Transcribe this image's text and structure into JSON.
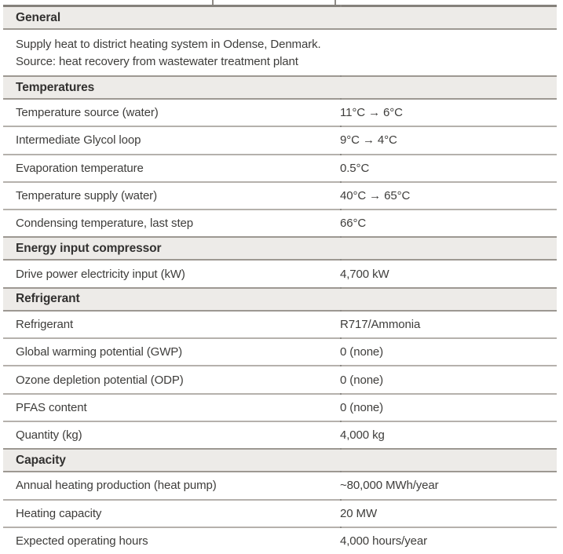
{
  "table": {
    "colors": {
      "header_bg": "#edebe8",
      "header_border": "#9d9892",
      "row_border": "#b5b1ac",
      "top_border": "#85817b",
      "text": "#3e3d3b",
      "header_text": "#323130"
    },
    "sections": [
      {
        "header": "General",
        "description_lines": [
          "Supply heat to district heating system in Odense, Denmark.",
          "Source: heat recovery from wastewater treatment plant"
        ],
        "rows": []
      },
      {
        "header": "Temperatures",
        "rows": [
          {
            "label": "Temperature source (water)",
            "value": "11°C → 6°C"
          },
          {
            "label": "Intermediate Glycol loop",
            "value": "9°C → 4°C"
          },
          {
            "label": "Evaporation temperature",
            "value": "0.5°C"
          },
          {
            "label": "Temperature supply (water)",
            "value": "40°C → 65°C"
          },
          {
            "label": "Condensing temperature, last step",
            "value": "66°C"
          }
        ]
      },
      {
        "header": "Energy input compressor",
        "rows": [
          {
            "label": "Drive power electricity input (kW)",
            "value": "4,700 kW"
          }
        ]
      },
      {
        "header": "Refrigerant",
        "rows": [
          {
            "label": "Refrigerant",
            "value": "R717/Ammonia"
          },
          {
            "label": "Global warming potential (GWP)",
            "value": "0 (none)"
          },
          {
            "label": "Ozone depletion potential (ODP)",
            "value": "0 (none)"
          },
          {
            "label": "PFAS content",
            "value": "0 (none)"
          },
          {
            "label": "Quantity (kg)",
            "value": "4,000 kg"
          }
        ]
      },
      {
        "header": "Capacity",
        "rows": [
          {
            "label": "Annual heating production (heat pump)",
            "value": "~80,000 MWh/year"
          },
          {
            "label": "Heating capacity",
            "value": "20 MW"
          },
          {
            "label": "Expected operating hours",
            "value": "4,000 hours/year"
          }
        ]
      }
    ]
  }
}
